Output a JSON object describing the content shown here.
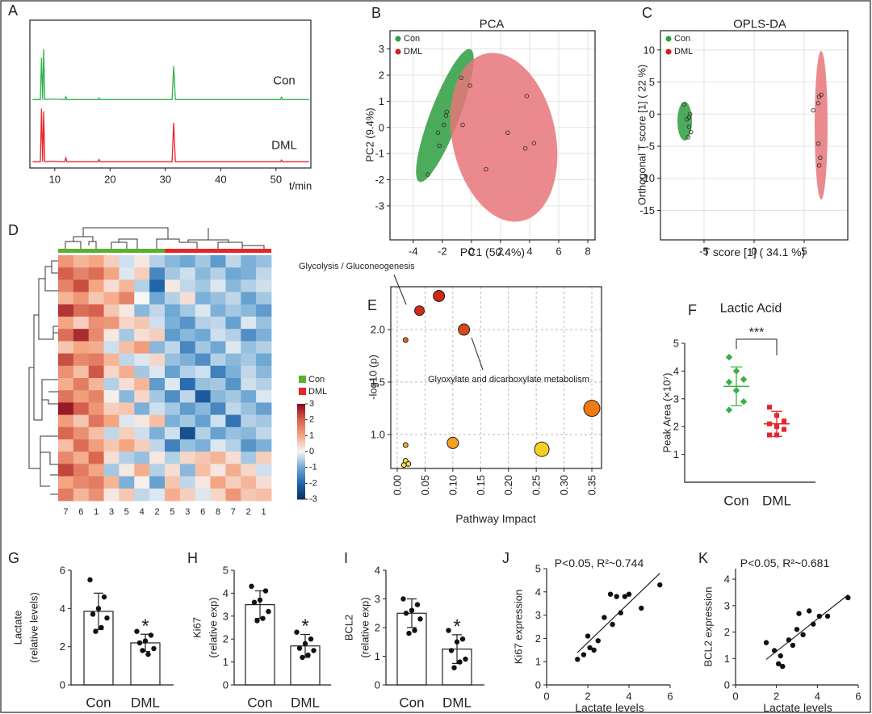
{
  "chart_data": [
    {
      "panel": "A",
      "type": "line",
      "x": [
        6,
        7.4,
        7.6,
        7.8,
        8.0,
        8.2,
        9.5,
        11.8,
        12,
        12.2,
        17.8,
        18,
        18.2,
        31.2,
        31.5,
        31.8,
        50.8,
        51,
        51.2,
        56
      ],
      "xlim": [
        5.5,
        56.3
      ],
      "xticks": [
        10,
        20,
        30,
        40,
        50
      ],
      "xlabel": "t/min",
      "series": [
        {
          "name": "Con",
          "color": "#2db34a",
          "values": [
            1,
            1,
            75,
            1,
            90,
            1,
            2,
            1,
            6,
            1,
            1,
            4,
            1,
            1,
            60,
            1,
            1,
            5,
            1,
            1
          ]
        },
        {
          "name": "DML",
          "color": "#e8252a",
          "values": [
            1,
            1,
            95,
            1,
            90,
            1,
            2,
            1,
            8,
            1,
            1,
            5,
            1,
            1,
            70,
            1,
            1,
            4,
            1,
            1
          ]
        }
      ]
    },
    {
      "panel": "B",
      "type": "scatter",
      "title": "PCA",
      "xlabel": "PC1 (50.4%)",
      "ylabel": "PC2 (9.4%)",
      "xlim": [
        -5.6,
        8.5
      ],
      "xticks": [
        -4,
        -2,
        0,
        2,
        4,
        6,
        8
      ],
      "ylim": [
        -4.3,
        3.7
      ],
      "yticks": [
        -3,
        -2,
        -1,
        0,
        1,
        2,
        3
      ],
      "grid": true,
      "series": [
        {
          "name": "Con",
          "color": "#2e9e3e",
          "x": [
            -3.0,
            -2.3,
            -2.2,
            -1.9,
            -1.75,
            -1.7,
            -0.6
          ],
          "values": [
            -1.8,
            -0.2,
            -0.7,
            0.1,
            0.45,
            0.6,
            0.1
          ]
        },
        {
          "name": "DML",
          "color": "#e8757a",
          "x": [
            -0.7,
            -0.1,
            1.0,
            2.5,
            3.8,
            3.7,
            4.3
          ],
          "values": [
            1.9,
            1.6,
            -1.6,
            -0.2,
            1.2,
            -0.8,
            -0.6
          ]
        }
      ]
    },
    {
      "panel": "C",
      "type": "scatter",
      "title": "OPLS-DA",
      "xlabel": "T score [1] ( 34.1 %)",
      "ylabel": "Orthogonal T score [1] ( 22 %)",
      "xlim": [
        -9.35,
        9.35
      ],
      "xticks": [
        -5,
        0,
        5
      ],
      "ylim": [
        -19.6,
        13
      ],
      "yticks": [
        -15,
        -10,
        -5,
        0,
        5,
        10
      ],
      "grid": true,
      "series": [
        {
          "name": "Con",
          "color": "#2e9e3e",
          "x": [
            -7.0,
            -6.7,
            -6.4,
            -6.5,
            -6.3,
            -6.6,
            -6.5
          ],
          "values": [
            1.5,
            -0.8,
            0.0,
            -0.5,
            -2.8,
            -3.6,
            -2.0
          ]
        },
        {
          "name": "DML",
          "color": "#e8757a",
          "x": [
            6.7,
            6.5,
            6.4,
            5.9,
            6.4,
            6.6,
            6.5
          ],
          "values": [
            3.0,
            2.7,
            1.7,
            0.6,
            -4.6,
            -6.8,
            -8.0
          ]
        }
      ]
    },
    {
      "panel": "D",
      "type": "heatmap",
      "groups": [
        {
          "name": "Con",
          "color": "#5cb030",
          "columns": [
            "7",
            "6",
            "1",
            "3",
            "5",
            "4",
            "2"
          ]
        },
        {
          "name": "DML",
          "color": "#e8252a",
          "columns": [
            "5",
            "3",
            "6",
            "8",
            "7",
            "2",
            "1"
          ]
        }
      ],
      "zlim": [
        -3,
        3
      ],
      "zticks": [
        3,
        2,
        1,
        0,
        -1,
        -2,
        -3
      ],
      "colormap": [
        "#053061",
        "#2166ac",
        "#6fa8d4",
        "#f7f7f7",
        "#f4a582",
        "#d6604d",
        "#8b0a1a"
      ],
      "values": [
        [
          1.2,
          0.8,
          1.0,
          0.5,
          -0.3,
          0.2,
          -0.5,
          -0.8,
          -1.0,
          -0.6,
          -1.2,
          -0.4,
          -0.9,
          -0.7
        ],
        [
          2.0,
          1.5,
          1.8,
          1.0,
          -0.2,
          0.5,
          -1.5,
          -0.6,
          -0.3,
          -0.8,
          -0.5,
          -1.0,
          -0.9,
          -0.4
        ],
        [
          1.5,
          2.2,
          1.0,
          0.3,
          0.8,
          -0.5,
          -2.0,
          0.2,
          -0.4,
          -0.6,
          -0.2,
          -0.8,
          -0.5,
          -0.3
        ],
        [
          0.8,
          1.2,
          0.6,
          0.9,
          1.5,
          0.0,
          -1.0,
          -0.5,
          0.3,
          -0.9,
          -0.7,
          -0.4,
          -1.1,
          -0.6
        ],
        [
          2.5,
          1.8,
          2.0,
          0.6,
          0.2,
          -0.8,
          -0.4,
          -1.0,
          -0.6,
          -0.2,
          -0.9,
          -0.6,
          -0.8,
          -1.2
        ],
        [
          1.0,
          0.5,
          1.3,
          1.2,
          0.4,
          0.6,
          -0.3,
          -0.9,
          -1.3,
          -0.5,
          -0.4,
          -1.1,
          -0.2,
          -0.7
        ],
        [
          1.8,
          2.6,
          1.4,
          0.2,
          -0.6,
          0.3,
          0.5,
          -1.2,
          -0.8,
          -1.0,
          -0.3,
          -0.5,
          -1.4,
          -0.9
        ],
        [
          0.6,
          1.0,
          0.9,
          -0.3,
          0.7,
          1.1,
          -0.8,
          -0.4,
          -1.5,
          -0.6,
          -1.0,
          -0.2,
          -0.7,
          -0.5
        ],
        [
          2.2,
          1.4,
          1.6,
          0.8,
          -0.4,
          -0.2,
          0.4,
          -0.7,
          -0.9,
          -1.4,
          -0.5,
          -0.8,
          -0.6,
          -1.0
        ],
        [
          1.3,
          0.7,
          2.1,
          0.4,
          0.9,
          -0.6,
          -0.2,
          -1.1,
          -0.5,
          -0.3,
          -1.6,
          -0.9,
          -0.4,
          -0.8
        ],
        [
          0.9,
          1.6,
          0.8,
          -0.5,
          0.3,
          0.8,
          -1.2,
          -0.2,
          -1.9,
          -0.7,
          -0.6,
          -1.3,
          -0.3,
          -0.5
        ],
        [
          1.7,
          1.1,
          1.5,
          0.1,
          -0.8,
          0.4,
          -0.6,
          -1.4,
          -0.4,
          -2.2,
          -0.8,
          -0.6,
          -1.0,
          -0.2
        ],
        [
          2.8,
          2.0,
          1.2,
          0.5,
          0.6,
          -0.9,
          -0.3,
          -0.6,
          -1.2,
          -0.8,
          -1.5,
          -0.4,
          -0.7,
          -1.1
        ],
        [
          1.1,
          0.6,
          1.7,
          1.0,
          -0.2,
          0.2,
          0.7,
          -0.9,
          -0.6,
          -1.1,
          -0.3,
          -1.8,
          -0.5,
          -0.6
        ],
        [
          1.9,
          1.3,
          0.7,
          -0.4,
          0.5,
          -0.3,
          -0.9,
          -0.3,
          -2.4,
          -0.5,
          -1.1,
          -0.7,
          -0.8,
          -0.4
        ],
        [
          0.7,
          1.8,
          1.1,
          0.6,
          1.0,
          0.5,
          -0.4,
          -1.6,
          -0.7,
          -0.9,
          -0.2,
          -0.5,
          -1.3,
          -0.9
        ],
        [
          1.4,
          0.9,
          1.9,
          0.3,
          -0.5,
          -0.7,
          0.2,
          -0.5,
          0.4,
          0.6,
          0.8,
          0.3,
          -0.6,
          0.5
        ],
        [
          2.3,
          1.6,
          1.0,
          -0.6,
          0.2,
          0.9,
          -0.5,
          0.3,
          -0.8,
          0.7,
          0.2,
          0.9,
          0.4,
          -0.3
        ],
        [
          1.0,
          1.4,
          1.6,
          0.8,
          -0.9,
          0.1,
          -1.1,
          0.6,
          -0.4,
          0.2,
          1.0,
          0.5,
          0.8,
          0.3
        ],
        [
          1.6,
          0.8,
          1.3,
          0.2,
          0.6,
          -0.4,
          -0.2,
          0.9,
          0.5,
          -0.2,
          0.4,
          1.2,
          0.6,
          0.7
        ]
      ]
    },
    {
      "panel": "E",
      "type": "bubble",
      "xlabel": "Pathway Impact",
      "ylabel": "-log10 (p)",
      "xlim": [
        -0.0116,
        0.3674
      ],
      "ylim": [
        0.677,
        2.408
      ],
      "grid": true,
      "xticks": [
        {
          "value": 0,
          "label": "0.00"
        },
        {
          "value": 0.05,
          "label": "0.05"
        },
        {
          "value": 0.1,
          "label": "0.10"
        },
        {
          "value": 0.15,
          "label": "0.15"
        },
        {
          "value": 0.2,
          "label": "0.20"
        },
        {
          "value": 0.25,
          "label": "0.25"
        },
        {
          "value": 0.3,
          "label": "0.30"
        },
        {
          "value": 0.35,
          "label": "0.35"
        }
      ],
      "yticks": [
        {
          "value": 1,
          "label": "1.0"
        },
        {
          "value": 1.5,
          "label": "1.5"
        },
        {
          "value": 2,
          "label": "2.0"
        }
      ],
      "x": [
        0.04,
        0.075,
        0.12,
        0.015,
        0.35,
        0.1,
        0.26,
        0.015,
        0.015,
        0.02,
        0.012
      ],
      "values": [
        2.18,
        2.32,
        2.0,
        1.9,
        1.25,
        0.92,
        0.86,
        0.9,
        0.75,
        0.72,
        0.71
      ],
      "sizes": [
        6,
        7,
        7,
        3,
        10,
        7,
        9,
        3,
        3,
        3,
        3
      ],
      "colors": [
        "#d42a1a",
        "#cc2a14",
        "#d9481a",
        "#e07020",
        "#f07a10",
        "#f5a020",
        "#f8d020",
        "#f5b020",
        "#f8e040",
        "#f8e040",
        "#f8e040"
      ],
      "annotations": [
        "Glycolysis / Gluconeogenesis",
        "Glyoxylate and dicarboxylate metabolism"
      ]
    },
    {
      "panel": "F",
      "type": "dotplot",
      "title": "Lactic Acid",
      "ylabel": "Peak Area (×10⁷)",
      "ylim": [
        0,
        5
      ],
      "yticks": [
        1,
        2,
        3,
        4,
        5
      ],
      "categories": [
        "Con",
        "DML"
      ],
      "colors": [
        "#3cb043",
        "#e8252a"
      ],
      "values": [
        [
          4.5,
          4.0,
          3.7,
          3.6,
          3.3,
          2.9,
          2.6
        ],
        [
          2.7,
          2.4,
          2.2,
          2.1,
          2.0,
          1.9,
          1.7,
          1.7
        ]
      ],
      "means": [
        3.45,
        2.1
      ],
      "errors": [
        0.7,
        0.45
      ],
      "annotation": "***"
    },
    {
      "panel": "G",
      "type": "bar",
      "ylabel": [
        "Lactate",
        "(relative levels)"
      ],
      "ylim": [
        0,
        6
      ],
      "yticks": [
        0,
        2,
        4,
        6
      ],
      "categories": [
        "Con",
        "DML"
      ],
      "colors": [
        "#6aa820",
        "#e8252a"
      ],
      "values": [
        [
          5.5,
          4.6,
          4.0,
          3.7,
          3.5,
          3.0,
          2.8
        ],
        [
          2.8,
          2.6,
          2.3,
          2.2,
          1.9,
          1.6,
          1.8
        ]
      ],
      "means": [
        3.85,
        2.2
      ],
      "errors": [
        0.95,
        0.45
      ],
      "annotation": "*"
    },
    {
      "panel": "H",
      "type": "bar",
      "ylabel": [
        "Ki67",
        "(relative exp)"
      ],
      "ylim": [
        0,
        5
      ],
      "yticks": [
        0,
        1,
        2,
        3,
        4,
        5
      ],
      "categories": [
        "Con",
        "DML"
      ],
      "colors": [
        "#6aa820",
        "#e8252a"
      ],
      "values": [
        [
          4.3,
          4.1,
          3.7,
          3.6,
          3.2,
          2.9,
          2.8
        ],
        [
          2.3,
          2.0,
          1.8,
          1.6,
          1.5,
          1.3,
          1.2
        ]
      ],
      "means": [
        3.5,
        1.7
      ],
      "errors": [
        0.6,
        0.5
      ],
      "annotation": "*"
    },
    {
      "panel": "I",
      "type": "bar",
      "ylabel": [
        "BCL2",
        "(relative exp)"
      ],
      "ylim": [
        0,
        4
      ],
      "yticks": [
        0,
        1,
        2,
        3,
        4
      ],
      "categories": [
        "Con",
        "DML"
      ],
      "colors": [
        "#6aa820",
        "#e8252a"
      ],
      "values": [
        [
          3.0,
          2.8,
          2.6,
          2.5,
          2.3,
          1.9,
          1.8
        ],
        [
          1.9,
          1.6,
          1.5,
          1.2,
          0.9,
          0.8,
          0.6
        ]
      ],
      "means": [
        2.5,
        1.25
      ],
      "errors": [
        0.5,
        0.5
      ],
      "annotation": "*"
    },
    {
      "panel": "J",
      "type": "regression",
      "xlabel": "Lactate levels",
      "ylabel": "Ki67 expression",
      "annotation": "P<0.05, R²~0.744",
      "xlim": [
        0,
        6
      ],
      "xticks": [
        0,
        2,
        4,
        6
      ],
      "ylim": [
        0,
        5
      ],
      "yticks": [
        0,
        1,
        2,
        3,
        4,
        5
      ],
      "x": [
        1.5,
        1.8,
        2.0,
        2.1,
        2.3,
        2.5,
        2.8,
        3.1,
        3.2,
        3.4,
        3.6,
        3.8,
        4.0,
        4.6,
        5.5
      ],
      "values": [
        1.1,
        1.3,
        2.1,
        1.6,
        1.5,
        1.9,
        2.9,
        3.9,
        2.6,
        3.8,
        3.1,
        3.8,
        3.9,
        3.3,
        4.3
      ]
    },
    {
      "panel": "K",
      "type": "regression",
      "xlabel": "Lactate levels",
      "ylabel": "BCL2 expression",
      "annotation": "P<0.05, R²~0.681",
      "xlim": [
        0,
        6
      ],
      "xticks": [
        0,
        2,
        4,
        6
      ],
      "ylim": [
        0,
        4.4
      ],
      "yticks": [
        0,
        1,
        2,
        3,
        4
      ],
      "x": [
        1.5,
        1.9,
        2.1,
        2.2,
        2.3,
        2.6,
        2.8,
        3.0,
        3.1,
        3.3,
        3.6,
        3.8,
        4.1,
        4.5,
        5.5
      ],
      "values": [
        1.6,
        1.3,
        0.8,
        1.1,
        0.7,
        1.7,
        1.5,
        2.1,
        2.7,
        1.9,
        2.8,
        2.3,
        2.6,
        2.6,
        3.3
      ]
    }
  ]
}
